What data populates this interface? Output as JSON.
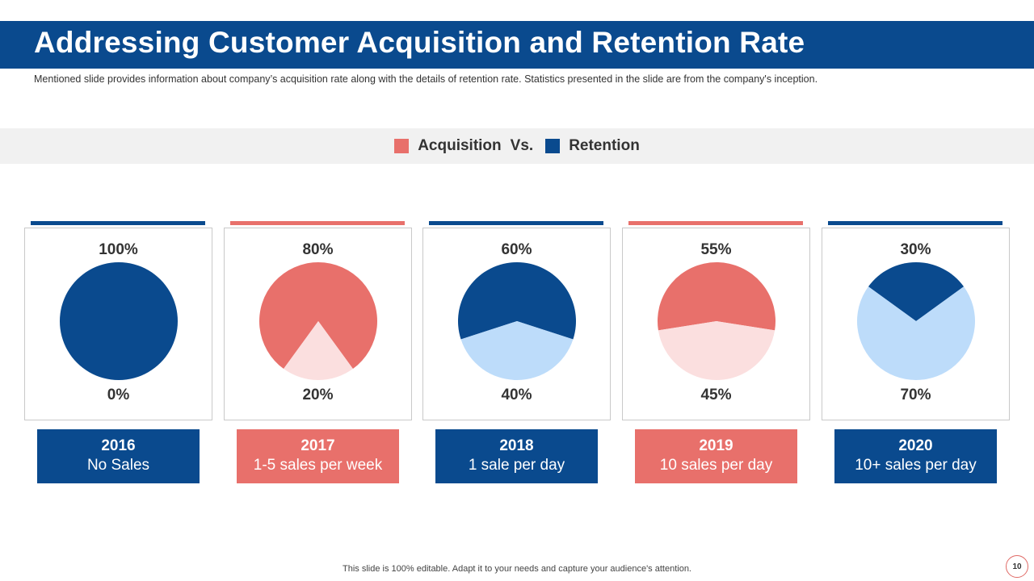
{
  "title": "Addressing Customer Acquisition and Retention Rate",
  "subtitle": "Mentioned slide provides information about company’s acquisition rate along with the details of retention rate. Statistics presented in the slide are from the company's inception.",
  "legend": {
    "acquisition_label": "Acquisition",
    "vs_label": "Vs.",
    "retention_label": "Retention"
  },
  "colors": {
    "brand_blue": "#0a4a8e",
    "acquisition_red": "#e8706b",
    "light_pink": "#fbdfdf",
    "light_blue": "#bddcfa"
  },
  "chart_data": [
    {
      "type": "pie",
      "year": "2016",
      "description": "No Sales",
      "top_label": "100%",
      "bottom_label": "0%",
      "values": [
        100,
        0
      ],
      "theme": "retention"
    },
    {
      "type": "pie",
      "year": "2017",
      "description": "1-5 sales per week",
      "top_label": "80%",
      "bottom_label": "20%",
      "values": [
        80,
        20
      ],
      "theme": "acquisition"
    },
    {
      "type": "pie",
      "year": "2018",
      "description": "1 sale per day",
      "top_label": "60%",
      "bottom_label": "40%",
      "values": [
        60,
        40
      ],
      "theme": "retention"
    },
    {
      "type": "pie",
      "year": "2019",
      "description": "10 sales per day",
      "top_label": "55%",
      "bottom_label": "45%",
      "values": [
        55,
        45
      ],
      "theme": "acquisition"
    },
    {
      "type": "pie",
      "year": "2020",
      "description": "10+ sales per day",
      "top_label": "30%",
      "bottom_label": "70%",
      "values": [
        30,
        70
      ],
      "theme": "retention"
    }
  ],
  "footer": "This slide is 100% editable. Adapt it to your needs and capture your audience's attention.",
  "page_number": "10"
}
